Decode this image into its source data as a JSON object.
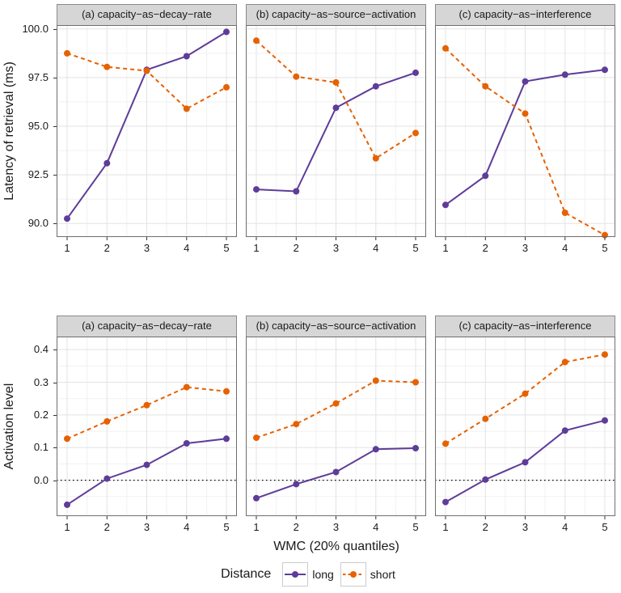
{
  "chart_data": {
    "type": "line",
    "x": [
      1,
      2,
      3,
      4,
      5
    ],
    "xlabel": "WMC (20% quantiles)",
    "legend": {
      "title": "Distance",
      "position": "bottom",
      "entries": [
        "long",
        "short"
      ]
    },
    "colors": {
      "long": "#5e3c99",
      "short": "#e66101",
      "strip_bg": "#d6d6d6",
      "strip_border": "#8a8a8a",
      "panel_border": "#6e6e6e",
      "grid_major": "#e3e3e3",
      "grid_minor": "#f1f1f1",
      "tick": "#333333",
      "zero_line": "#000000"
    },
    "rows": [
      {
        "ylabel": "Latency of retrieval (ms)",
        "ylim": [
          89.3,
          100.2
        ],
        "ytick_values": [
          90.0,
          92.5,
          95.0,
          97.5,
          100.0
        ],
        "yticks": [
          "90.0",
          "92.5",
          "95.0",
          "97.5",
          "100.0"
        ],
        "zero_line": false,
        "facets": [
          {
            "title": "(a) capacity−as−decay−rate",
            "series": [
              {
                "name": "long",
                "values": [
                  90.25,
                  93.1,
                  97.9,
                  98.6,
                  99.85
                ]
              },
              {
                "name": "short",
                "values": [
                  98.75,
                  98.05,
                  97.85,
                  95.9,
                  97.0
                ]
              }
            ]
          },
          {
            "title": "(b) capacity−as−source−activation",
            "series": [
              {
                "name": "long",
                "values": [
                  91.75,
                  91.65,
                  95.95,
                  97.05,
                  97.75
                ]
              },
              {
                "name": "short",
                "values": [
                  99.4,
                  97.55,
                  97.25,
                  93.35,
                  94.65
                ]
              }
            ]
          },
          {
            "title": "(c) capacity−as−interference",
            "series": [
              {
                "name": "long",
                "values": [
                  90.95,
                  92.45,
                  97.3,
                  97.65,
                  97.9
                ]
              },
              {
                "name": "short",
                "values": [
                  99.0,
                  97.05,
                  95.65,
                  90.55,
                  89.4
                ]
              }
            ]
          }
        ]
      },
      {
        "ylabel": "Activation level",
        "ylim": [
          -0.11,
          0.44
        ],
        "ytick_values": [
          0.0,
          0.1,
          0.2,
          0.3,
          0.4
        ],
        "yticks": [
          "0.0",
          "0.1",
          "0.2",
          "0.3",
          "0.4"
        ],
        "zero_line": true,
        "facets": [
          {
            "title": "(a) capacity−as−decay−rate",
            "series": [
              {
                "name": "long",
                "values": [
                  -0.075,
                  0.005,
                  0.047,
                  0.113,
                  0.127
                ]
              },
              {
                "name": "short",
                "values": [
                  0.127,
                  0.18,
                  0.23,
                  0.285,
                  0.272
                ]
              }
            ]
          },
          {
            "title": "(b) capacity−as−source−activation",
            "series": [
              {
                "name": "long",
                "values": [
                  -0.055,
                  -0.012,
                  0.025,
                  0.095,
                  0.098
                ]
              },
              {
                "name": "short",
                "values": [
                  0.13,
                  0.172,
                  0.235,
                  0.305,
                  0.3
                ]
              }
            ]
          },
          {
            "title": "(c) capacity−as−interference",
            "series": [
              {
                "name": "long",
                "values": [
                  -0.067,
                  0.002,
                  0.055,
                  0.152,
                  0.183
                ]
              },
              {
                "name": "short",
                "values": [
                  0.112,
                  0.188,
                  0.265,
                  0.362,
                  0.385
                ]
              }
            ]
          }
        ]
      }
    ]
  }
}
